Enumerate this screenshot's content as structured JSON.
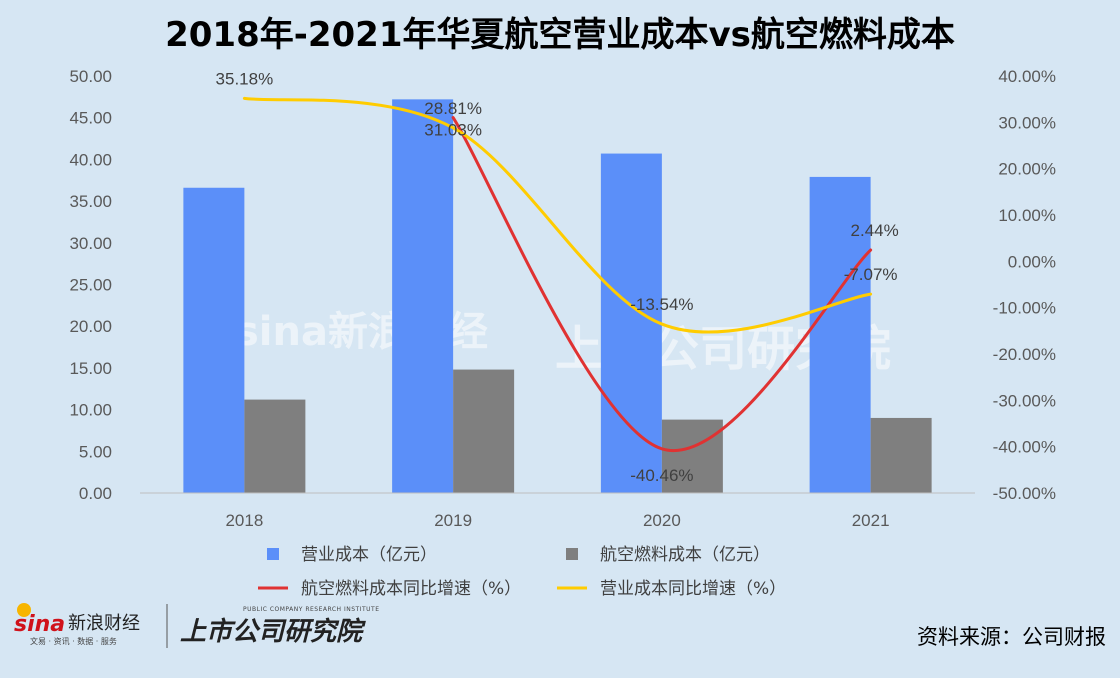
{
  "chart_data": {
    "type": "bar",
    "title": "2018年-2021年华夏航空营业成本vs航空燃料成本",
    "categories": [
      "2018",
      "2019",
      "2020",
      "2021"
    ],
    "series": [
      {
        "name": "营业成本（亿元）",
        "type": "bar",
        "axis": "left",
        "color": "#5b8ff9",
        "values": [
          36.6,
          47.2,
          40.7,
          37.9
        ]
      },
      {
        "name": "航空燃料成本（亿元）",
        "type": "bar",
        "axis": "left",
        "color": "#7f7f7f",
        "values": [
          11.2,
          14.8,
          8.8,
          9.0
        ]
      },
      {
        "name": "航空燃料成本同比增速（%）",
        "type": "line",
        "axis": "right",
        "color": "#e03232",
        "values": [
          null,
          31.03,
          -40.46,
          2.44
        ],
        "labels": [
          "",
          "31.03%",
          "-40.46%",
          "2.44%"
        ]
      },
      {
        "name": "营业成本同比增速（%）",
        "type": "line",
        "axis": "right",
        "color": "#ffcc00",
        "values": [
          35.18,
          28.81,
          -13.54,
          -7.07
        ],
        "labels": [
          "35.18%",
          "28.81%",
          "-13.54%",
          "-7.07%"
        ]
      }
    ],
    "y_left": {
      "min": 0,
      "max": 50,
      "step": 5,
      "ticks": [
        "0.00",
        "5.00",
        "10.00",
        "15.00",
        "20.00",
        "25.00",
        "30.00",
        "35.00",
        "40.00",
        "45.00",
        "50.00"
      ]
    },
    "y_right": {
      "min": -50,
      "max": 40,
      "step": 10,
      "ticks": [
        "-50.00%",
        "-40.00%",
        "-30.00%",
        "-20.00%",
        "-10.00%",
        "0.00%",
        "10.00%",
        "20.00%",
        "30.00%",
        "40.00%"
      ]
    },
    "legend_position": "bottom",
    "grid": false
  },
  "source": "资料来源：公司财报",
  "watermarks": {
    "center_left": "sina新浪财经",
    "center_right": "上市公司研究院"
  },
  "logos": {
    "sina_text": "sina",
    "sina_cn": "新浪财经",
    "sina_sub": "文易 · 资讯 · 数据 · 服务",
    "institute_cn": "上市公司研究院",
    "institute_en": "PUBLIC COMPANY RESEARCH INSTITUTE"
  },
  "colors": {
    "background": "#d6e6f3",
    "bar1": "#5b8ff9",
    "bar2": "#7f7f7f",
    "line_red": "#e03232",
    "line_yellow": "#ffcc00"
  }
}
